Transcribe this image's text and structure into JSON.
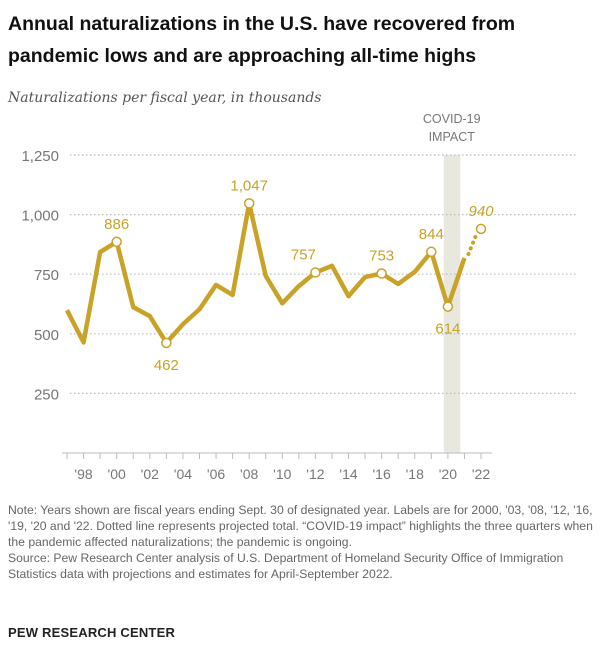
{
  "title": "Annual naturalizations in the U.S. have recovered from pandemic lows and are approaching all-time highs",
  "subtitle": "Naturalizations per fiscal year, in thousands",
  "colors": {
    "line": "#C9A227",
    "label": "#C9A227",
    "band": "#E8E8DF",
    "grid": "#BBBBBB",
    "axis_text": "#777777"
  },
  "chart_data": {
    "type": "line",
    "x": [
      1997,
      1998,
      1999,
      2000,
      2001,
      2002,
      2003,
      2004,
      2005,
      2006,
      2007,
      2008,
      2009,
      2010,
      2011,
      2012,
      2013,
      2014,
      2015,
      2016,
      2017,
      2018,
      2019,
      2020,
      2021,
      2022
    ],
    "values": [
      599,
      464,
      843,
      886,
      612,
      574,
      462,
      540,
      603,
      705,
      663,
      1047,
      743,
      628,
      700,
      757,
      785,
      658,
      738,
      753,
      709,
      760,
      844,
      614,
      818,
      940
    ],
    "projected_from": 2021,
    "ylim": [
      0,
      1250
    ],
    "yticks": [
      250,
      500,
      750,
      1000,
      1250
    ],
    "ytick_labels": [
      "250",
      "500",
      "750",
      "1,000",
      "1,250"
    ],
    "xtick_labels": [
      {
        "year": 1998,
        "label": "'98"
      },
      {
        "year": 2000,
        "label": "'00"
      },
      {
        "year": 2002,
        "label": "'02"
      },
      {
        "year": 2004,
        "label": "'04"
      },
      {
        "year": 2006,
        "label": "'06"
      },
      {
        "year": 2008,
        "label": "'08"
      },
      {
        "year": 2010,
        "label": "'10"
      },
      {
        "year": 2012,
        "label": "'12"
      },
      {
        "year": 2014,
        "label": "'14"
      },
      {
        "year": 2016,
        "label": "'16"
      },
      {
        "year": 2018,
        "label": "'18"
      },
      {
        "year": 2020,
        "label": "'20"
      },
      {
        "year": 2022,
        "label": "'22"
      }
    ],
    "data_labels": [
      {
        "year": 2000,
        "label": "886",
        "pos": "above"
      },
      {
        "year": 2003,
        "label": "462",
        "pos": "below"
      },
      {
        "year": 2008,
        "label": "1,047",
        "pos": "above"
      },
      {
        "year": 2012,
        "label": "757",
        "pos": "above-left"
      },
      {
        "year": 2016,
        "label": "753",
        "pos": "above"
      },
      {
        "year": 2019,
        "label": "844",
        "pos": "above"
      },
      {
        "year": 2020,
        "label": "614",
        "pos": "below"
      },
      {
        "year": 2022,
        "label": "940",
        "pos": "above"
      }
    ],
    "highlight": {
      "label_line1": "COVID-19",
      "label_line2": "IMPACT",
      "from": 2019.75,
      "to": 2020.75
    },
    "grid": true
  },
  "note": "Note: Years shown are fiscal years ending Sept. 30 of designated year. Labels are for 2000, '03, '08, '12, '16, '19, '20 and '22. Dotted line represents projected total. “COVID-19 impact” highlights the three quarters when the pandemic affected naturalizations; the pandemic is ongoing.",
  "source": "Source: Pew Research Center analysis of U.S. Department of Homeland Security Office of Immigration Statistics data with projections and estimates for April-September 2022.",
  "brand": "PEW RESEARCH CENTER"
}
